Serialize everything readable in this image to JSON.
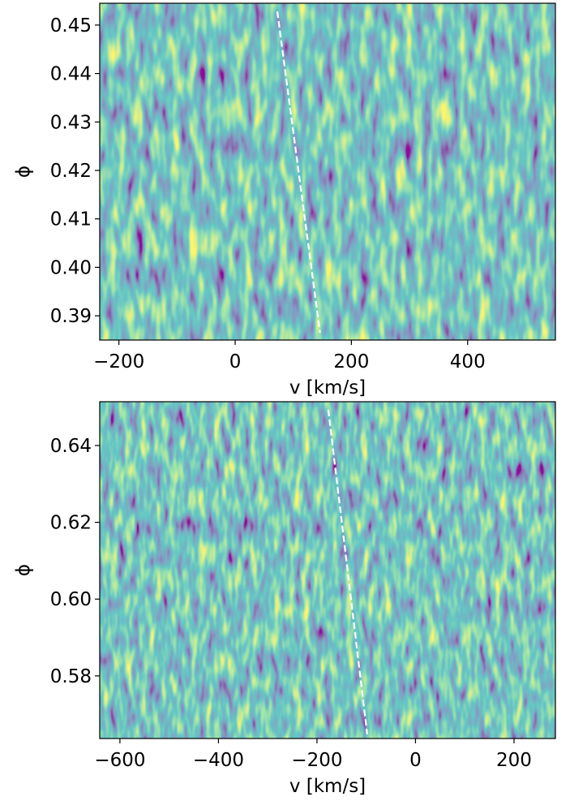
{
  "chart_data": [
    {
      "type": "heatmap",
      "xlabel": "v [km/s]",
      "ylabel": "ϕ",
      "xlim": [
        -233,
        551
      ],
      "ylim": [
        0.385,
        0.4545
      ],
      "xticks": [
        {
          "value": -200,
          "label": "−200"
        },
        0,
        200,
        400
      ],
      "yticks": [
        0.39,
        {
          "value": 0.4,
          "label": "0.40"
        },
        0.41,
        0.42,
        0.43,
        0.44,
        0.45
      ],
      "series": [
        {
          "color": "#ffffff",
          "linestyle": "dashed",
          "x": [
            72.5,
            146
          ],
          "values": [
            0.4528,
            0.3865
          ]
        }
      ]
    },
    {
      "type": "heatmap",
      "xlabel": "v [km/s]",
      "ylabel": "ϕ",
      "xlim": [
        -641,
        284
      ],
      "ylim": [
        0.5637,
        0.6514
      ],
      "xticks": [
        {
          "value": -600,
          "label": "−600"
        },
        {
          "value": -400,
          "label": "−400"
        },
        {
          "value": -200,
          "label": "−200"
        },
        0,
        200
      ],
      "yticks": [
        0.58,
        {
          "value": 0.6,
          "label": "0.60"
        },
        0.62,
        0.64
      ],
      "series": [
        {
          "color": "#ffffff",
          "linestyle": "dashed",
          "x": [
            -177,
            -98
          ],
          "values": [
            0.6493,
            0.5648
          ]
        }
      ]
    }
  ]
}
